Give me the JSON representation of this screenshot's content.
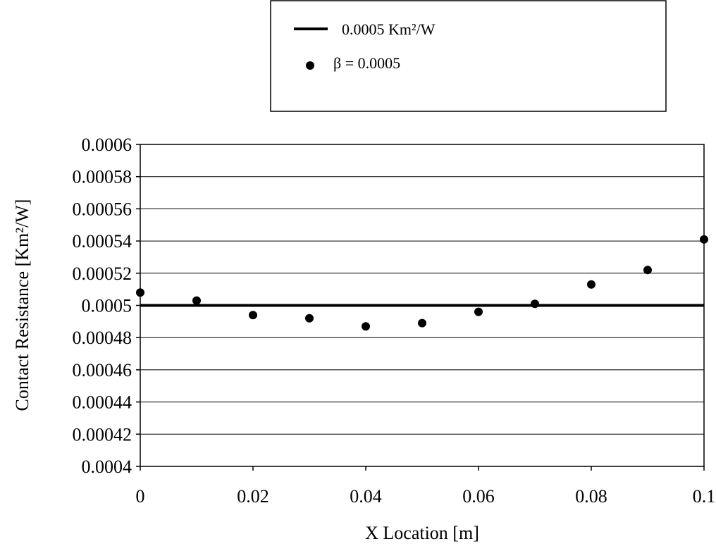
{
  "chart_data": {
    "type": "scatter",
    "title": "",
    "xlabel": "X Location [m]",
    "ylabel": "Contact Resistance  [Km²/W]",
    "xlim": [
      0,
      0.1
    ],
    "ylim": [
      0.0004,
      0.0006
    ],
    "x_ticks": [
      "0",
      "0.02",
      "0.04",
      "0.06",
      "0.08",
      "0.1"
    ],
    "y_ticks": [
      "0.0004",
      "0.00042",
      "0.00044",
      "0.00046",
      "0.00048",
      "0.0005",
      "0.00052",
      "0.00054",
      "0.00056",
      "0.00058",
      "0.0006"
    ],
    "grid": "horizontal",
    "legend_position": "top-right, outside plot",
    "series": [
      {
        "name": "0.0005   Km²/W",
        "kind": "line",
        "color": "#000000",
        "x": [
          0,
          0.1
        ],
        "y": [
          0.0005,
          0.0005
        ]
      },
      {
        "name": "β = 0.0005",
        "kind": "scatter",
        "color": "#000000",
        "x": [
          0,
          0.01,
          0.02,
          0.03,
          0.04,
          0.05,
          0.06,
          0.07,
          0.08,
          0.09,
          0.1
        ],
        "y": [
          0.000508,
          0.000503,
          0.000494,
          0.000492,
          0.000487,
          0.000489,
          0.000496,
          0.000501,
          0.000513,
          0.000522,
          0.000541
        ]
      }
    ]
  }
}
